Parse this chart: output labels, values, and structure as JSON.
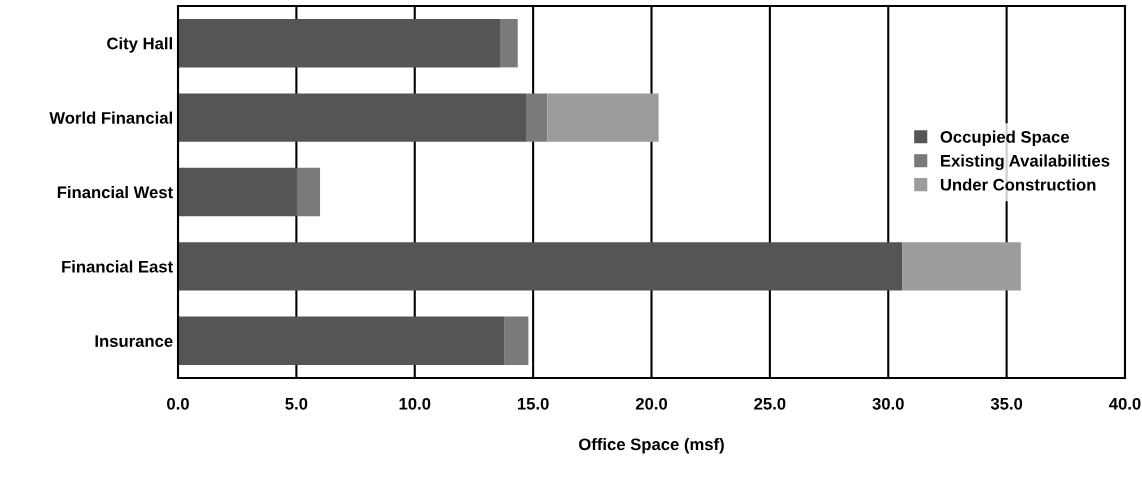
{
  "chart_data": {
    "type": "bar",
    "orientation": "horizontal",
    "stacked": true,
    "categories": [
      "City Hall",
      "World Financial",
      "Financial West",
      "Financial East",
      "Insurance"
    ],
    "series": [
      {
        "name": "Occupied Space",
        "color": "#555555",
        "values": [
          13.6,
          14.7,
          5.0,
          30.6,
          13.8
        ]
      },
      {
        "name": "Existing Availabilities",
        "color": "#7a7a7a",
        "values": [
          0.75,
          0.9,
          1.0,
          0,
          1.0
        ]
      },
      {
        "name": "Under Construction",
        "color": "#9c9c9c",
        "values": [
          0,
          4.7,
          0,
          5.0,
          0
        ]
      }
    ],
    "xlabel": "Office Space (msf)",
    "xlim": [
      0,
      40
    ],
    "xticks": [
      {
        "value": 0,
        "label": "0.0"
      },
      {
        "value": 5,
        "label": "5.0"
      },
      {
        "value": 10,
        "label": "10.0"
      },
      {
        "value": 15,
        "label": "15.0"
      },
      {
        "value": 20,
        "label": "20.0"
      },
      {
        "value": 25,
        "label": "25.0"
      },
      {
        "value": 30,
        "label": "30.0"
      },
      {
        "value": 35,
        "label": "35.0"
      },
      {
        "value": 40,
        "label": "40.0"
      }
    ],
    "grid": "x",
    "legend": "right"
  }
}
